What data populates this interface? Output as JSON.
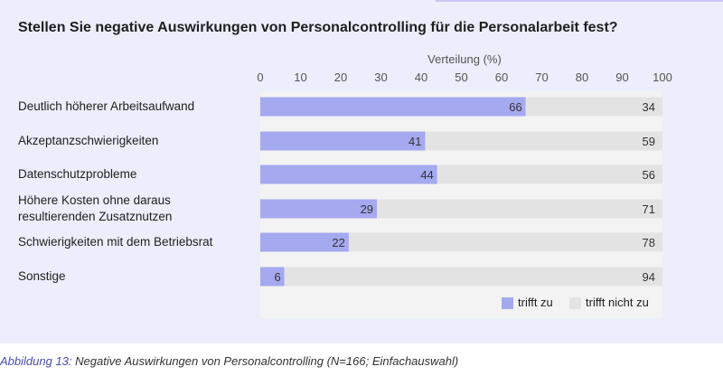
{
  "header": {
    "title": "Stellen Sie negative Auswirkungen von Personalcontrolling für die Personalarbeit fest?"
  },
  "caption": {
    "figure_label": "Abbildung 13:",
    "text": "Negative Auswirkungen von Personalcontrolling (N=166; Einfachauswahl)"
  },
  "colors": {
    "trifft_zu": "#a5a9f0",
    "trifft_nicht_zu": "#e3e3e3",
    "background": "#eceefb"
  },
  "chart_data": {
    "type": "bar",
    "orientation": "horizontal",
    "stacked": true,
    "xlabel": "Verteilung (%)",
    "xlim": [
      0,
      100
    ],
    "xticks": [
      "0",
      "10",
      "20",
      "30",
      "40",
      "50",
      "60",
      "70",
      "80",
      "90",
      "100"
    ],
    "categories": [
      "Deutlich höherer Arbeitsaufwand",
      "Akzeptanzschwierigkeiten",
      "Datenschutzprobleme",
      "Höhere Kosten ohne daraus resultierenden Zusatznutzen",
      "Schwierigkeiten mit dem Betriebsrat",
      "Sonstige"
    ],
    "category_lines": [
      [
        "Deutlich höherer Arbeitsaufwand"
      ],
      [
        "Akzeptanzschwierigkeiten"
      ],
      [
        "Datenschutzprobleme"
      ],
      [
        "Höhere Kosten ohne daraus",
        "resultierenden Zusatznutzen"
      ],
      [
        "Schwierigkeiten mit dem Betriebsrat"
      ],
      [
        "Sonstige"
      ]
    ],
    "series": [
      {
        "name": "trifft zu",
        "values": [
          66,
          41,
          44,
          29,
          22,
          6
        ]
      },
      {
        "name": "trifft nicht zu",
        "values": [
          34,
          59,
          56,
          71,
          78,
          94
        ]
      }
    ],
    "legend_position": "bottom-right",
    "grid": false
  }
}
